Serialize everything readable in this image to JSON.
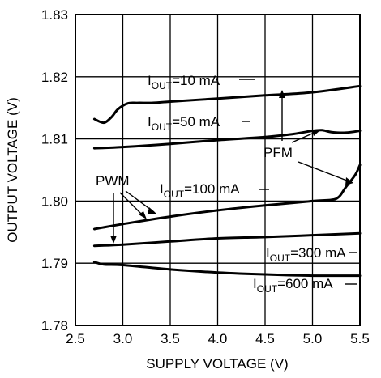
{
  "chart_data": {
    "type": "line",
    "title": "",
    "xlabel": "SUPPLY VOLTAGE (V)",
    "ylabel": "OUTPUT VOLTAGE (V)",
    "xlim": [
      2.5,
      5.5
    ],
    "ylim": [
      1.78,
      1.83
    ],
    "xticks": [
      "2.5",
      "3.0",
      "3.5",
      "4.0",
      "4.5",
      "5.0",
      "5.5"
    ],
    "yticks": [
      "1.78",
      "1.79",
      "1.80",
      "1.81",
      "1.82",
      "1.83"
    ],
    "grid": true,
    "series": [
      {
        "name": "10 mA",
        "x": [
          2.7,
          2.8,
          2.88,
          2.95,
          3.05,
          3.15,
          3.3,
          3.5,
          4.0,
          4.5,
          5.0,
          5.5
        ],
        "y": [
          1.8132,
          1.8126,
          1.8135,
          1.8148,
          1.8157,
          1.8158,
          1.8158,
          1.816,
          1.8165,
          1.817,
          1.8175,
          1.8185
        ]
      },
      {
        "name": "50 mA",
        "x": [
          2.7,
          3.0,
          3.5,
          4.0,
          4.5,
          4.8,
          5.0,
          5.1,
          5.2,
          5.35,
          5.5
        ],
        "y": [
          1.8085,
          1.8087,
          1.8092,
          1.8098,
          1.8103,
          1.8108,
          1.8113,
          1.8114,
          1.8111,
          1.811,
          1.8113
        ]
      },
      {
        "name": "100 mA",
        "x": [
          2.7,
          3.0,
          3.5,
          4.0,
          4.5,
          5.0,
          5.2,
          5.28,
          5.35,
          5.45,
          5.5
        ],
        "y": [
          1.7955,
          1.7963,
          1.7975,
          1.7985,
          1.7993,
          1.8,
          1.8002,
          1.8007,
          1.8022,
          1.8042,
          1.8058
        ]
      },
      {
        "name": "300 mA",
        "x": [
          2.7,
          3.0,
          3.5,
          4.0,
          4.5,
          5.0,
          5.5
        ],
        "y": [
          1.7928,
          1.793,
          1.7935,
          1.794,
          1.7942,
          1.7945,
          1.7948
        ]
      },
      {
        "name": "600 mA",
        "x": [
          2.7,
          2.8,
          3.0,
          3.5,
          4.0,
          4.5,
          5.0,
          5.5
        ],
        "y": [
          1.7902,
          1.7898,
          1.7897,
          1.789,
          1.7885,
          1.7882,
          1.788,
          1.788
        ]
      }
    ],
    "labels": {
      "i_main": "I",
      "out_sub": "OUT",
      "eq_10": "=10 mA",
      "eq_50": "=50 mA",
      "eq_100": "=100 mA",
      "eq_300": "=300 mA",
      "eq_600": "=600 mA",
      "pfm": "PFM",
      "pwm": "PWM"
    }
  }
}
